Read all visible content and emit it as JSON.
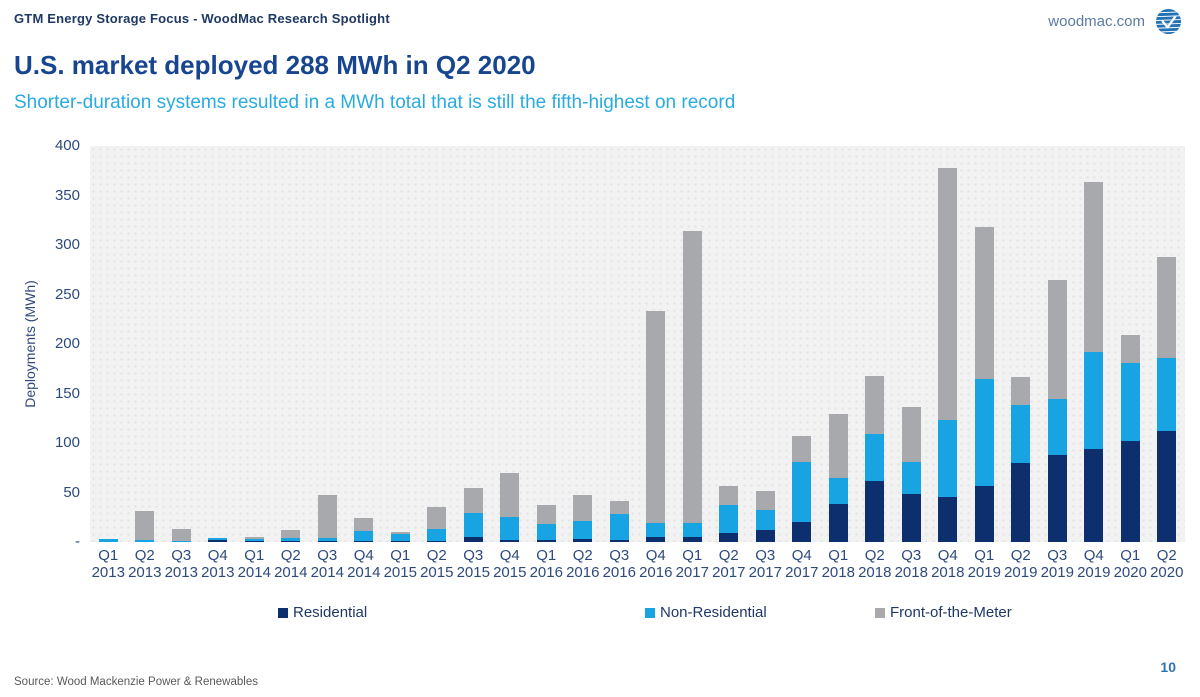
{
  "header": {
    "kicker": "GTM Energy Storage Focus - WoodMac Research Spotlight",
    "site": "woodmac.com",
    "logo_icon": "woodmac-globe-icon",
    "logo_color": "#2272b4"
  },
  "title": "U.S. market deployed 288 MWh in Q2 2020",
  "subtitle": "Shorter-duration systems resulted in a MWh total that is still the fifth-highest on record",
  "footer": {
    "source": "Source: Wood Mackenzie Power & Renewables",
    "page_number": "10"
  },
  "colors": {
    "title": "#17458f",
    "subtitle": "#29abe2",
    "kicker": "#1f3864",
    "axis_text": "#2e4a7c",
    "residential": "#0e2f6e",
    "non_residential": "#18a3e2",
    "front_of_meter": "#a7a9ac",
    "plot_background": "#f2f2f3",
    "source_text": "#595959",
    "page_number": "#2e74b5"
  },
  "chart_data": {
    "type": "bar",
    "stacked": true,
    "title": "U.S. market deployed 288 MWh in Q2 2020",
    "subtitle": "Shorter-duration systems resulted in a MWh total that is still the fifth-highest on record",
    "xlabel": "",
    "ylabel": "Deployments (MWh)",
    "ylim": [
      0,
      400
    ],
    "ytick_labels": [
      "400",
      "350",
      "300",
      "250",
      "200",
      "150",
      "100",
      "50",
      "-"
    ],
    "grid": false,
    "legend_position": "bottom",
    "categories": [
      "Q1 2013",
      "Q2 2013",
      "Q3 2013",
      "Q4 2013",
      "Q1 2014",
      "Q2 2014",
      "Q3 2014",
      "Q4 2014",
      "Q1 2015",
      "Q2 2015",
      "Q3 2015",
      "Q4 2015",
      "Q1 2016",
      "Q2 2016",
      "Q3 2016",
      "Q4 2016",
      "Q1 2017",
      "Q2 2017",
      "Q3 2017",
      "Q4 2017",
      "Q1 2018",
      "Q2 2018",
      "Q3 2018",
      "Q4 2018",
      "Q1 2019",
      "Q2 2019",
      "Q3 2019",
      "Q4 2019",
      "Q1 2020",
      "Q2 2020"
    ],
    "series": [
      {
        "name": "Residential",
        "color": "#0e2f6e",
        "values": [
          0,
          0,
          0,
          2,
          1,
          1,
          1,
          1,
          1,
          1,
          5,
          2,
          2,
          3,
          2,
          5,
          5,
          9,
          12,
          20,
          38,
          62,
          48,
          45,
          57,
          80,
          88,
          94,
          102,
          112
        ]
      },
      {
        "name": "Non-Residential",
        "color": "#18a3e2",
        "values": [
          3,
          2,
          1,
          2,
          2,
          3,
          3,
          10,
          7,
          12,
          24,
          23,
          16,
          18,
          26,
          14,
          14,
          28,
          20,
          61,
          27,
          47,
          33,
          78,
          108,
          58,
          56,
          98,
          79,
          74
        ]
      },
      {
        "name": "Front-of-the-Meter",
        "color": "#a7a9ac",
        "values": [
          0,
          29,
          12,
          0,
          2,
          8,
          44,
          13,
          2,
          22,
          26,
          45,
          19,
          27,
          13,
          214,
          295,
          20,
          20,
          26,
          64,
          59,
          55,
          255,
          153,
          29,
          121,
          172,
          28,
          102
        ]
      }
    ]
  }
}
